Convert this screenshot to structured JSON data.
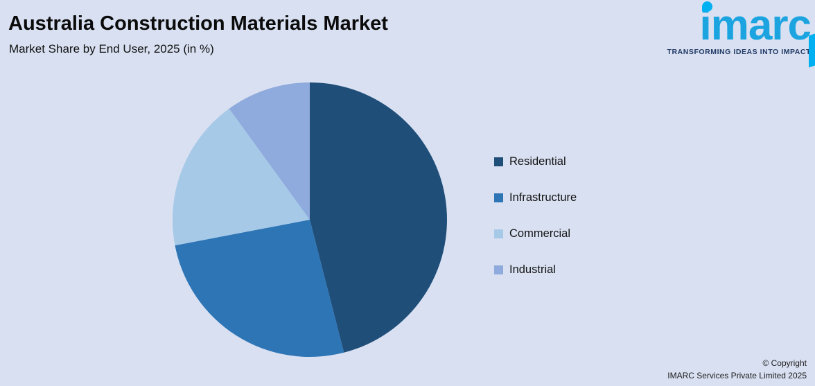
{
  "header": {
    "title": "Australia Construction Materials Market",
    "subtitle": "Market Share by End User, 2025 (in %)"
  },
  "logo": {
    "text": "imarc",
    "tagline": "TRANSFORMING IDEAS INTO IMPACT"
  },
  "footer": {
    "copyright_line1": "© Copyright",
    "copyright_line2": "IMARC Services Private Limited 2025"
  },
  "chart_data": {
    "type": "pie",
    "title": "Australia Construction Materials Market",
    "subtitle": "Market Share by End User, 2025 (in %)",
    "categories": [
      "Residential",
      "Infrastructure",
      "Commercial",
      "Industrial"
    ],
    "values": [
      46,
      26,
      18,
      10
    ],
    "colors": [
      "#1f4e79",
      "#2e75b6",
      "#a6c9e8",
      "#8faadc"
    ],
    "start_angle_deg": 0,
    "direction": "clockwise",
    "legend_position": "right",
    "data_labels": false
  },
  "colors": {
    "background": "#d8e0f1",
    "title_text": "#0b0b0b",
    "legend_text": "#141414",
    "logo_blue": "#1ca4e0",
    "logo_dot_cyan": "#00b0f0",
    "tagline_navy": "#1f3864"
  }
}
